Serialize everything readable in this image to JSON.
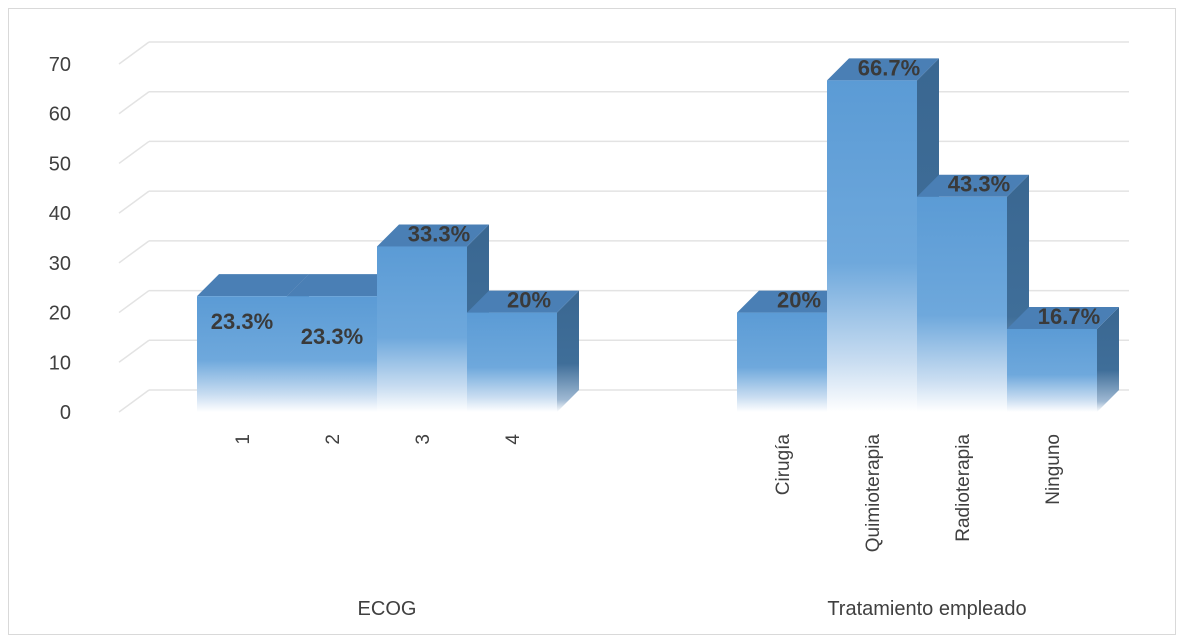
{
  "chart_data": {
    "type": "bar",
    "ylim": [
      0,
      70
    ],
    "yticks": [
      0,
      10,
      20,
      30,
      40,
      50,
      60,
      70
    ],
    "grid": true,
    "legend": "none",
    "colors": {
      "front": "#5b9bd5",
      "top": "#4a7fb5",
      "side": "#3a6791"
    },
    "groups": [
      {
        "label": "ECOG",
        "categories": [
          "1",
          "2",
          "3",
          "4"
        ],
        "values": [
          23.3,
          23.3,
          33.3,
          20
        ],
        "data_labels": [
          "23.3%",
          "23.3%",
          "33.3%",
          "20%"
        ]
      },
      {
        "label": "Tratamiento empleado",
        "categories": [
          "Cirugía",
          "Quimioterapia",
          "Radioterapia",
          "Ninguno"
        ],
        "values": [
          20,
          66.7,
          43.3,
          16.7
        ],
        "data_labels": [
          "20%",
          "66.7%",
          "43.3%",
          "16.7%"
        ]
      }
    ]
  }
}
